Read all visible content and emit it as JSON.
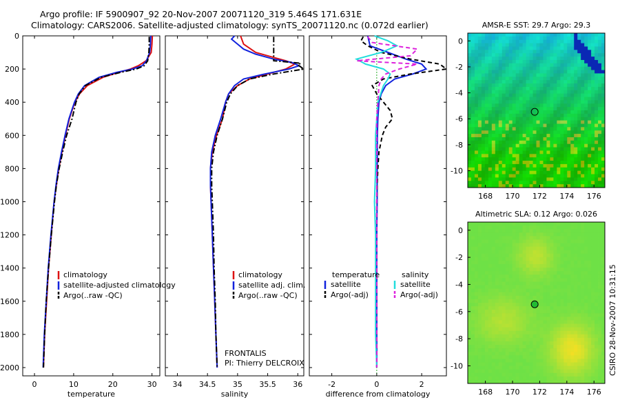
{
  "title_line1": "Argo profile: IF 5900907_92 20-Nov-2007 20071120_319 5.464S 171.631E",
  "title_line2": "Climatology: CARS2006. Satellite-adjusted climatology: synTS_20071120.nc (0.072d earlier)",
  "side_label": "CSIRO 28-Nov-2007 10:31:15",
  "colors": {
    "climatology": "#dd1111",
    "satellite": "#1122dd",
    "argo": "#000000",
    "sat_diff": "#22dddd",
    "argo_sal_diff": "#dd22dd"
  },
  "chart_data": [
    {
      "type": "line",
      "xlabel": "temperature",
      "xlim": [
        -3,
        32
      ],
      "ylim": [
        0,
        2050
      ],
      "y_reversed": true,
      "xticks": [
        0,
        10,
        20,
        30
      ],
      "yticks": [
        0,
        200,
        400,
        600,
        800,
        1000,
        1200,
        1400,
        1600,
        1800,
        2000
      ],
      "legend": [
        "climatology",
        "satellite-adjusted climatology",
        "Argo(..raw -QC)"
      ],
      "series": [
        {
          "name": "climatology",
          "style": "solid",
          "color": "#dd1111",
          "depth": [
            0,
            50,
            100,
            150,
            180,
            200,
            220,
            250,
            300,
            350,
            400,
            500,
            600,
            700,
            800,
            900,
            1000,
            1200,
            1400,
            1600,
            1800,
            2000
          ],
          "values": [
            30.1,
            30.0,
            29.8,
            28.5,
            26.5,
            24.5,
            21.5,
            17.5,
            13.5,
            11.5,
            10.3,
            8.9,
            7.9,
            7.0,
            6.2,
            5.6,
            5.0,
            4.3,
            3.6,
            3.1,
            2.6,
            2.3
          ]
        },
        {
          "name": "satellite-adjusted climatology",
          "style": "solid",
          "color": "#1122dd",
          "depth": [
            0,
            50,
            100,
            150,
            180,
            200,
            220,
            250,
            300,
            350,
            400,
            500,
            600,
            700,
            800,
            900,
            1000,
            1200,
            1400,
            1600,
            1800,
            2000
          ],
          "values": [
            29.7,
            29.6,
            29.4,
            28.6,
            27.5,
            25.0,
            21.0,
            16.5,
            12.8,
            11.2,
            10.2,
            8.8,
            7.8,
            6.9,
            6.1,
            5.5,
            5.0,
            4.2,
            3.5,
            3.0,
            2.5,
            2.2
          ]
        },
        {
          "name": "Argo(..raw -QC)",
          "style": "dashdot",
          "color": "#000000",
          "depth": [
            5,
            50,
            100,
            150,
            180,
            200,
            220,
            250,
            300,
            350,
            400,
            500,
            600,
            700,
            800,
            900,
            1000,
            1200,
            1400,
            1600,
            1800,
            2000
          ],
          "values": [
            29.3,
            29.3,
            29.2,
            28.9,
            28.0,
            26.0,
            22.0,
            17.0,
            13.0,
            11.4,
            10.6,
            9.6,
            8.2,
            7.2,
            6.3,
            5.6,
            5.1,
            4.3,
            3.6,
            3.0,
            2.6,
            2.3
          ]
        }
      ]
    },
    {
      "type": "line",
      "xlabel": "salinity",
      "xlim": [
        33.8,
        36.1
      ],
      "ylim": [
        0,
        2050
      ],
      "y_reversed": true,
      "xticks": [
        34,
        34.5,
        35,
        35.5,
        36
      ],
      "legend": [
        "climatology",
        "satellite adj. clim.",
        "Argo(..raw -QC)"
      ],
      "annotation": [
        "FRONTALIS",
        "PI: Thierry DELCROIX"
      ],
      "series": [
        {
          "name": "climatology",
          "style": "solid",
          "color": "#dd1111",
          "depth": [
            0,
            50,
            100,
            130,
            150,
            170,
            200,
            230,
            260,
            300,
            350,
            400,
            500,
            600,
            700,
            800,
            900,
            1000,
            1200,
            1400,
            1600,
            1800,
            2000
          ],
          "values": [
            35.05,
            35.1,
            35.3,
            35.6,
            35.8,
            35.95,
            35.8,
            35.5,
            35.2,
            35.0,
            34.85,
            34.8,
            34.75,
            34.65,
            34.58,
            34.55,
            34.55,
            34.56,
            34.58,
            34.6,
            34.62,
            34.64,
            34.66
          ]
        },
        {
          "name": "satellite adj. clim.",
          "style": "solid",
          "color": "#1122dd",
          "depth": [
            0,
            20,
            50,
            80,
            110,
            140,
            160,
            180,
            200,
            230,
            260,
            300,
            350,
            400,
            500,
            600,
            700,
            800,
            900,
            1000,
            1200,
            1400,
            1600,
            1800,
            2000
          ],
          "values": [
            34.95,
            34.9,
            35.0,
            35.1,
            35.3,
            35.6,
            35.9,
            36.02,
            35.85,
            35.45,
            35.1,
            34.95,
            34.85,
            34.8,
            34.72,
            34.63,
            34.57,
            34.55,
            34.55,
            34.56,
            34.58,
            34.6,
            34.62,
            34.64,
            34.66
          ]
        },
        {
          "name": "Argo(..raw -QC)",
          "style": "dashdot",
          "color": "#000000",
          "depth": [
            5,
            60,
            100,
            130,
            150,
            165,
            175,
            200,
            230,
            260,
            300,
            350,
            400,
            500,
            600,
            700,
            800,
            900,
            1000,
            1200,
            1400,
            1600,
            1800,
            2000
          ],
          "values": [
            35.6,
            35.6,
            35.6,
            35.6,
            35.6,
            36.05,
            36.0,
            36.1,
            35.6,
            35.2,
            35.0,
            34.88,
            34.82,
            34.75,
            34.66,
            34.6,
            34.57,
            34.57,
            34.58,
            34.6,
            34.61,
            34.63,
            34.64,
            34.66
          ]
        }
      ]
    },
    {
      "type": "line",
      "xlabel": "difference from climatology",
      "xlim": [
        -3,
        3.1
      ],
      "ylim": [
        0,
        2050
      ],
      "y_reversed": true,
      "xticks": [
        -2,
        0,
        2
      ],
      "legend_groups": [
        {
          "heading": "temperature",
          "items": [
            "satellite",
            "Argo(-adj)"
          ]
        },
        {
          "heading": "salinity",
          "items": [
            "satellite",
            "Argo(-adj)"
          ]
        }
      ],
      "series": [
        {
          "name": "satellite",
          "group": "temperature",
          "style": "solid",
          "color": "#1122dd",
          "depth": [
            0,
            30,
            60,
            100,
            140,
            170,
            200,
            230,
            260,
            300,
            350,
            400,
            500,
            600,
            800,
            1000,
            1200,
            1400,
            1600,
            1800,
            2000
          ],
          "values": [
            -0.4,
            -0.35,
            -0.3,
            0.5,
            1.3,
            2.0,
            2.2,
            1.6,
            0.8,
            0.4,
            0.2,
            0.1,
            0.05,
            0.03,
            0.02,
            0.02,
            0.0,
            0.0,
            0.0,
            0.0,
            0.0
          ]
        },
        {
          "name": "Argo(-adj)",
          "group": "temperature",
          "style": "dashed",
          "color": "#000000",
          "depth": [
            5,
            30,
            60,
            100,
            140,
            170,
            200,
            230,
            260,
            300,
            350,
            400,
            450,
            500,
            550,
            600,
            700,
            800,
            900,
            1000,
            1200,
            1400,
            1600,
            1800,
            2000
          ],
          "values": [
            -0.6,
            -0.7,
            -0.4,
            0.2,
            1.5,
            2.8,
            3.1,
            1.5,
            0.3,
            -0.2,
            0.0,
            0.3,
            0.6,
            0.7,
            0.4,
            0.25,
            0.1,
            0.05,
            0.02,
            0.0,
            0.0,
            0.0,
            0.0,
            0.0,
            0.0
          ]
        },
        {
          "name": "satellite",
          "group": "salinity",
          "style": "solid",
          "color": "#22dddd",
          "depth": [
            0,
            30,
            60,
            100,
            140,
            170,
            200,
            230,
            260,
            300,
            400,
            500,
            600,
            800,
            1000,
            1200,
            1400,
            1600,
            1800,
            2000
          ],
          "values": [
            -0.1,
            0.5,
            0.9,
            0.2,
            -0.9,
            -0.5,
            0.3,
            0.6,
            0.5,
            0.3,
            0.05,
            0.0,
            -0.05,
            -0.05,
            -0.1,
            -0.05,
            -0.05,
            -0.05,
            -0.05,
            0.0
          ]
        },
        {
          "name": "Argo(-adj)",
          "group": "salinity",
          "style": "dashed",
          "color": "#dd22dd",
          "depth": [
            5,
            40,
            80,
            120,
            150,
            170,
            200,
            230,
            260,
            300,
            400,
            500,
            600,
            800,
            1000,
            1200,
            1400,
            1600,
            1800,
            2000
          ],
          "values": [
            -0.4,
            -0.2,
            1.8,
            1.5,
            -0.9,
            1.8,
            1.0,
            0.4,
            0.2,
            0.1,
            0.05,
            0.0,
            0.0,
            0.0,
            0.0,
            0.0,
            0.0,
            0.0,
            0.0,
            0.0
          ]
        }
      ]
    },
    {
      "type": "heatmap",
      "title": "AMSR-E SST: 29.7 Argo: 29.3",
      "xlim": [
        166.7,
        176.8
      ],
      "ylim": [
        -11.3,
        0.6
      ],
      "xticks": [
        168,
        170,
        172,
        174,
        176
      ],
      "yticks": [
        0,
        -2,
        -4,
        -6,
        -8,
        -10
      ],
      "marker": {
        "lon": 171.631,
        "lat": -5.464
      }
    },
    {
      "type": "heatmap",
      "title": "Altimetric SLA: 0.12 Argo: 0.026",
      "xlim": [
        166.7,
        176.8
      ],
      "ylim": [
        -11.3,
        0.6
      ],
      "xticks": [
        168,
        170,
        172,
        174,
        176
      ],
      "yticks": [
        0,
        -2,
        -4,
        -6,
        -8,
        -10
      ],
      "marker": {
        "lon": 171.631,
        "lat": -5.464
      }
    }
  ]
}
